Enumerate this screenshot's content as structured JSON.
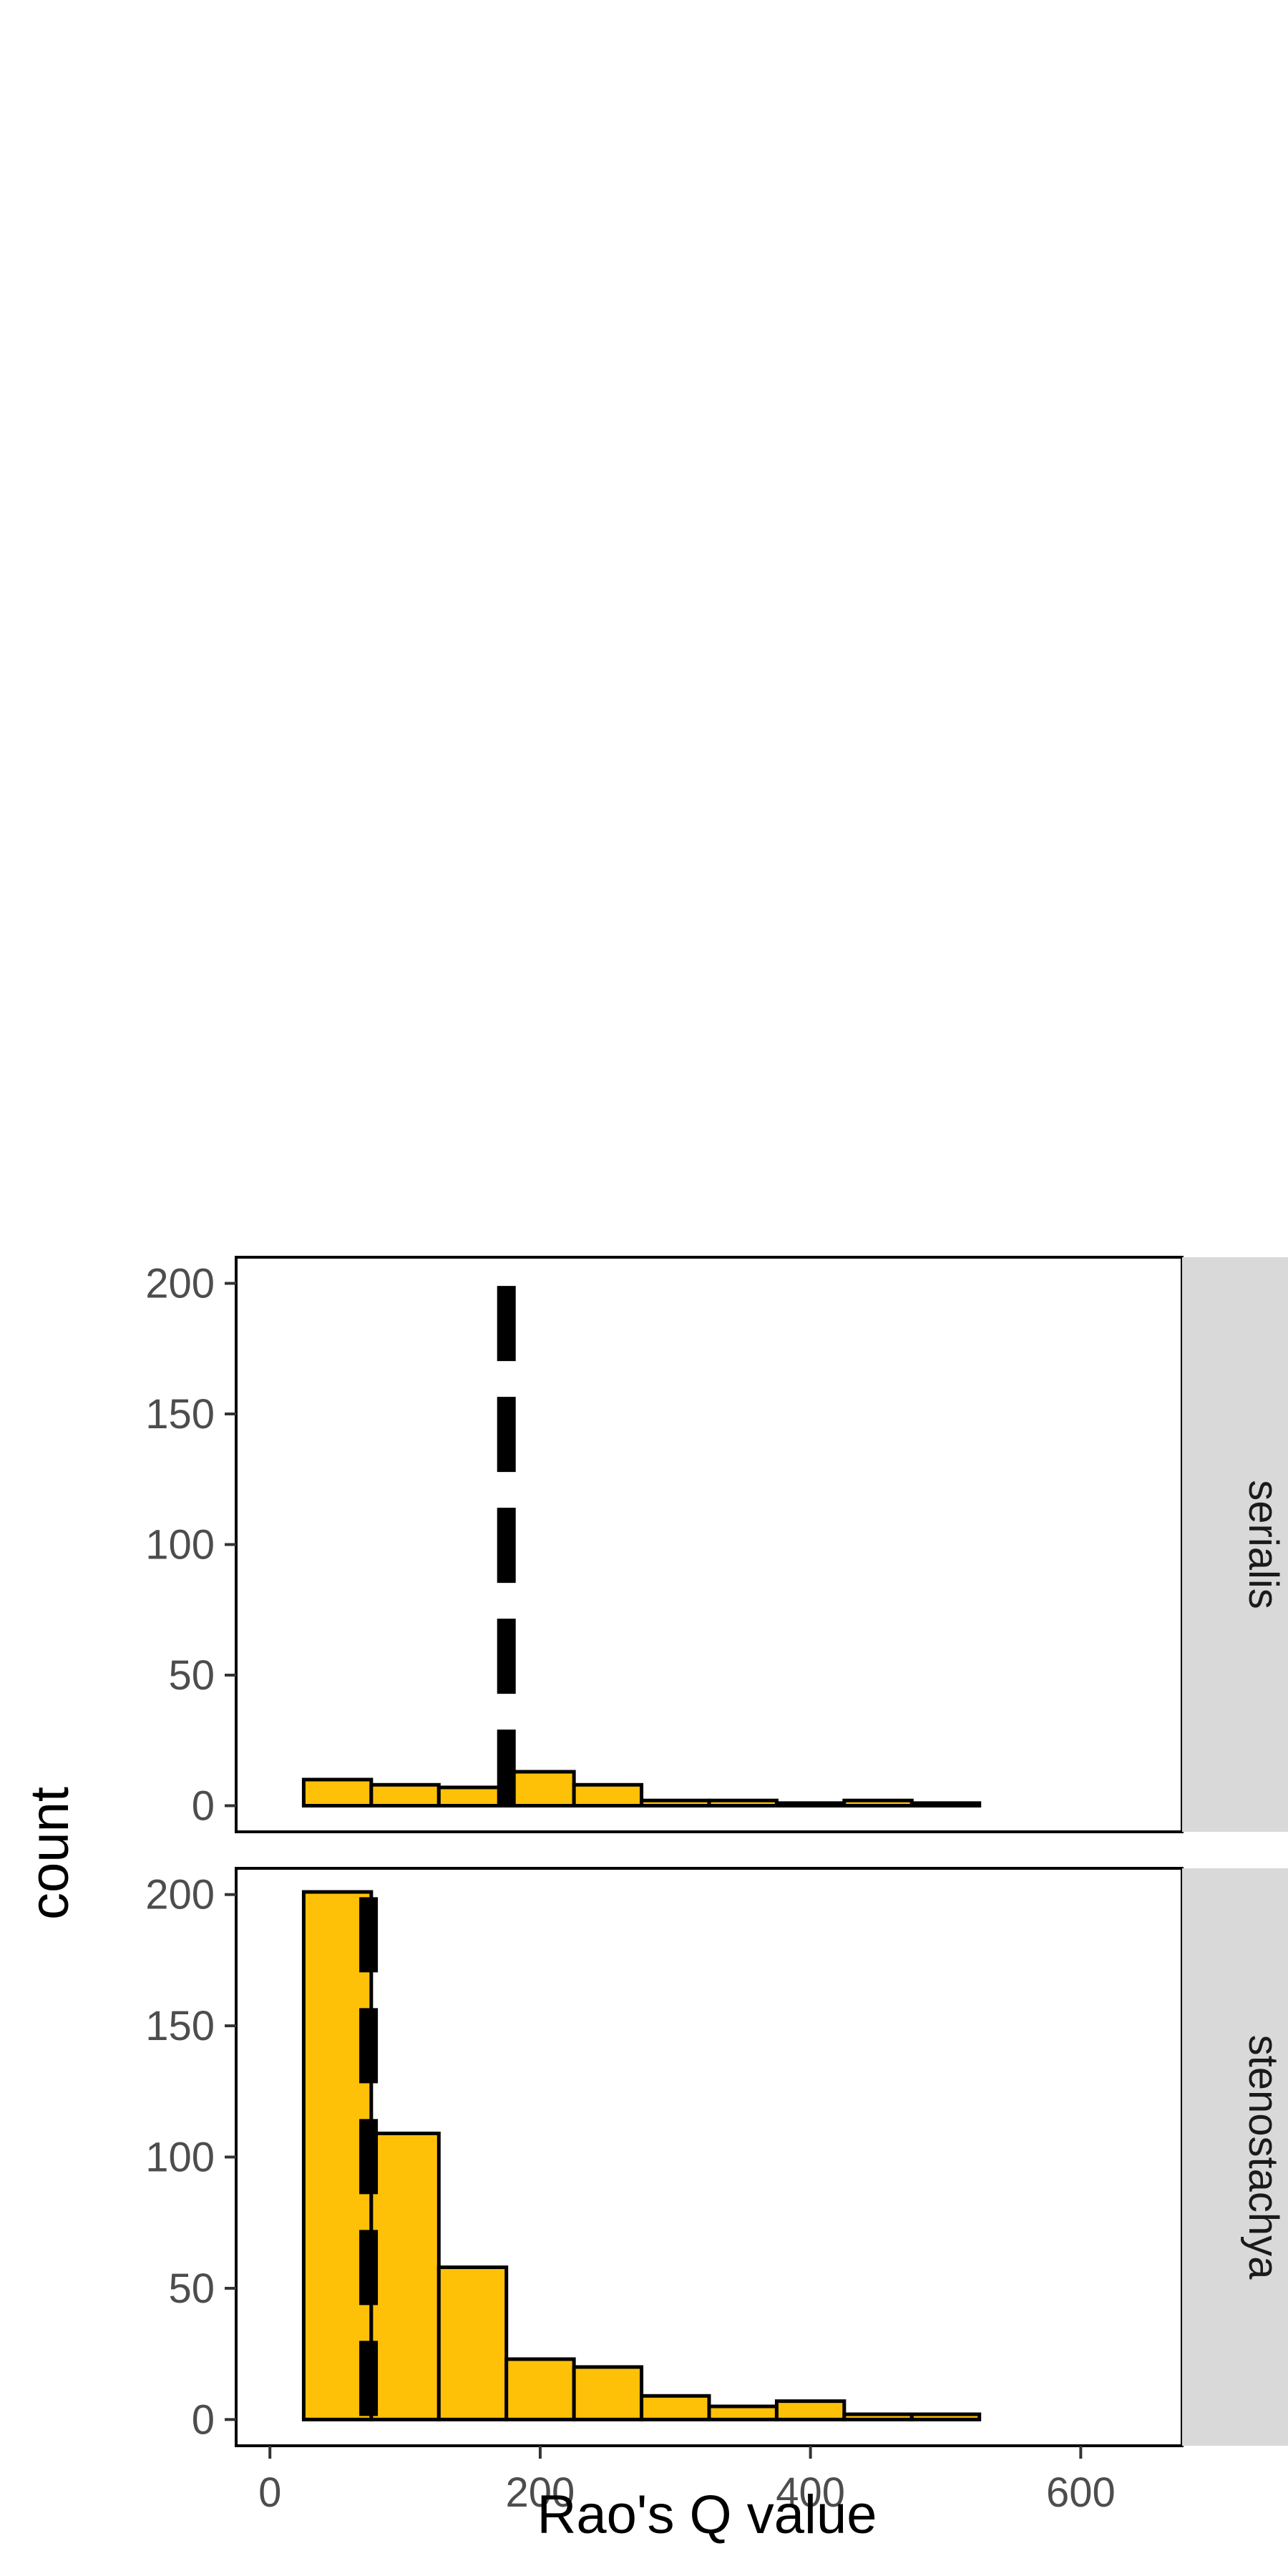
{
  "chart_data": {
    "type": "bar",
    "subtype": "faceted-histogram",
    "title": "",
    "xlabel": "Rao's Q value",
    "ylabel": "count",
    "xlim": [
      -25,
      675
    ],
    "ylim": [
      -10,
      210
    ],
    "xticks": [
      0,
      200,
      400,
      600
    ],
    "yticks": [
      0,
      50,
      100,
      150,
      200
    ],
    "bin_edges": [
      25,
      75,
      125,
      175,
      225,
      275,
      325,
      375,
      425,
      475,
      525,
      575,
      625
    ],
    "fill_color": "#FFC107",
    "stroke_color": "#000000",
    "grid": false,
    "legend": "none",
    "facets": [
      {
        "name": "serialis",
        "counts": [
          10,
          8,
          7,
          13,
          8,
          2,
          2,
          1,
          2,
          1,
          0,
          0
        ],
        "mean_line": 175
      },
      {
        "name": "stenostachya",
        "counts": [
          201,
          109,
          58,
          23,
          20,
          9,
          5,
          7,
          2,
          2,
          0,
          0
        ],
        "mean_line": 73
      }
    ]
  }
}
